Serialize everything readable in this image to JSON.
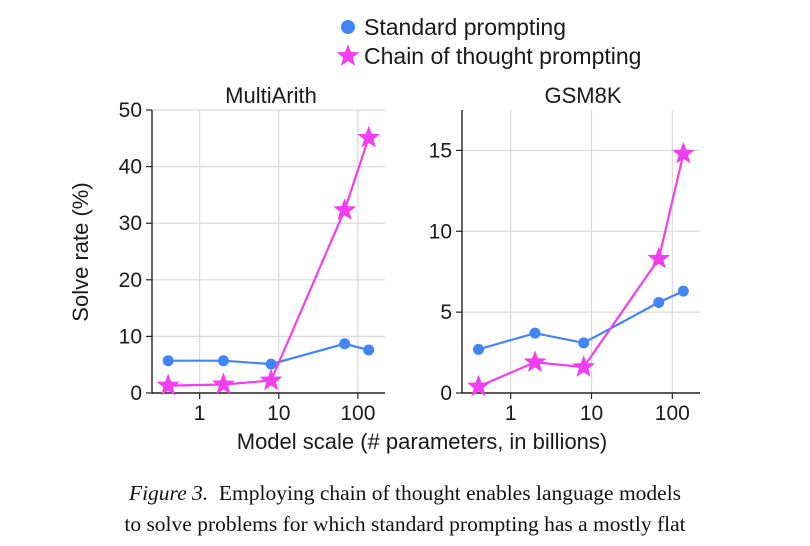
{
  "chart_data": [
    {
      "type": "line",
      "title": "MultiArith",
      "ylabel": "Solve rate (%)",
      "xscale": "log",
      "xlim": [
        0.25,
        220
      ],
      "ylim": [
        0,
        50
      ],
      "yticks": [
        0,
        10,
        20,
        30,
        40,
        50
      ],
      "xticks": [
        1,
        10,
        100
      ],
      "xtick_labels": [
        "1",
        "10",
        "100"
      ],
      "grid": true,
      "series": [
        {
          "name": "Standard prompting",
          "color": "#4285f4",
          "marker": "circle",
          "x": [
            0.4,
            2,
            8,
            68,
            137
          ],
          "y": [
            5.7,
            5.7,
            5.1,
            8.7,
            7.6
          ]
        },
        {
          "name": "Chain of thought prompting",
          "color": "#f23ef0",
          "marker": "star",
          "x": [
            0.4,
            2,
            8,
            68,
            137
          ],
          "y": [
            1.3,
            1.5,
            2.2,
            32.3,
            45.1
          ]
        }
      ]
    },
    {
      "type": "line",
      "title": "GSM8K",
      "ylabel": "",
      "xscale": "log",
      "xlim": [
        0.25,
        220
      ],
      "ylim": [
        0,
        17.5
      ],
      "yticks": [
        0,
        5,
        10,
        15
      ],
      "xticks": [
        1,
        10,
        100
      ],
      "xtick_labels": [
        "1",
        "10",
        "100"
      ],
      "grid": true,
      "series": [
        {
          "name": "Standard prompting",
          "color": "#4285f4",
          "marker": "circle",
          "x": [
            0.4,
            2,
            8,
            68,
            137
          ],
          "y": [
            2.7,
            3.7,
            3.1,
            5.6,
            6.3
          ]
        },
        {
          "name": "Chain of thought prompting",
          "color": "#f23ef0",
          "marker": "star",
          "x": [
            0.4,
            2,
            8,
            68,
            137
          ],
          "y": [
            0.4,
            1.9,
            1.6,
            8.3,
            14.8
          ]
        }
      ]
    }
  ],
  "shared_xlabel": "Model scale (# parameters, in billions)",
  "legend": {
    "placement": "top-center",
    "entries": [
      {
        "label": "Standard prompting",
        "color": "#4285f4",
        "marker": "circle"
      },
      {
        "label": "Chain of thought prompting",
        "color": "#f23ef0",
        "marker": "star"
      }
    ]
  },
  "caption": {
    "figure_label": "Figure 3.",
    "line1_rest": "Employing chain of thought enables language models",
    "line2": "to solve problems for which standard prompting has a mostly flat"
  }
}
